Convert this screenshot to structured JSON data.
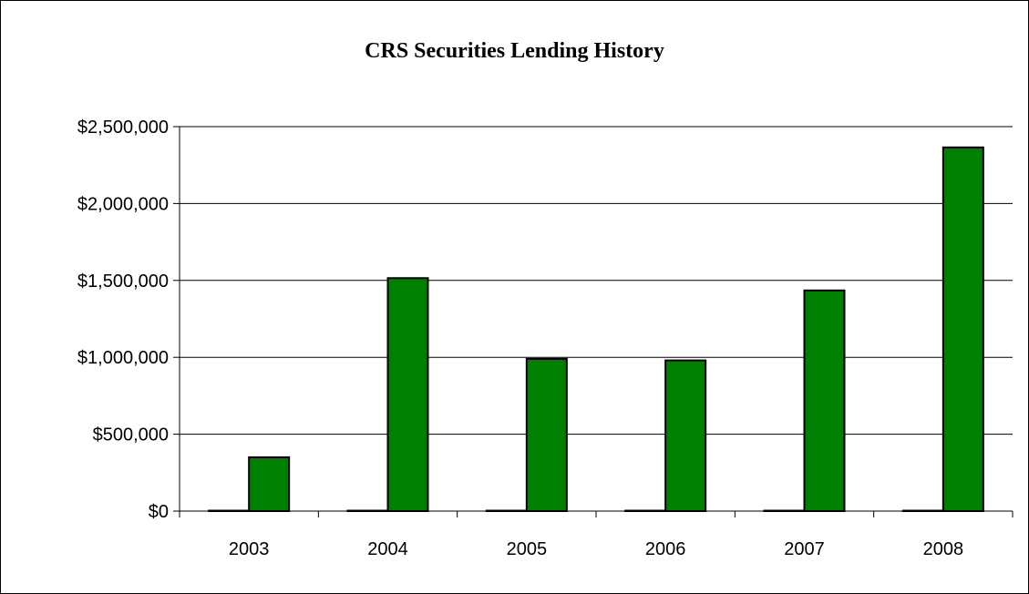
{
  "chart_data": {
    "type": "bar",
    "title": "CRS Securities Lending History",
    "xlabel": "",
    "ylabel": "",
    "categories": [
      "2003",
      "2004",
      "2005",
      "2006",
      "2007",
      "2008"
    ],
    "series": [
      {
        "values": [
          0,
          0,
          0,
          0,
          0,
          0
        ],
        "color": "#000000"
      },
      {
        "values": [
          350000,
          1515000,
          990000,
          980000,
          1435000,
          2365000
        ],
        "color": "#008000"
      }
    ],
    "ylim": [
      0,
      2500000
    ],
    "y_ticks": [
      "$0",
      "$500,000",
      "$1,000,000",
      "$1,500,000",
      "$2,000,000",
      "$2,500,000"
    ],
    "grid": true,
    "legend": "none"
  }
}
